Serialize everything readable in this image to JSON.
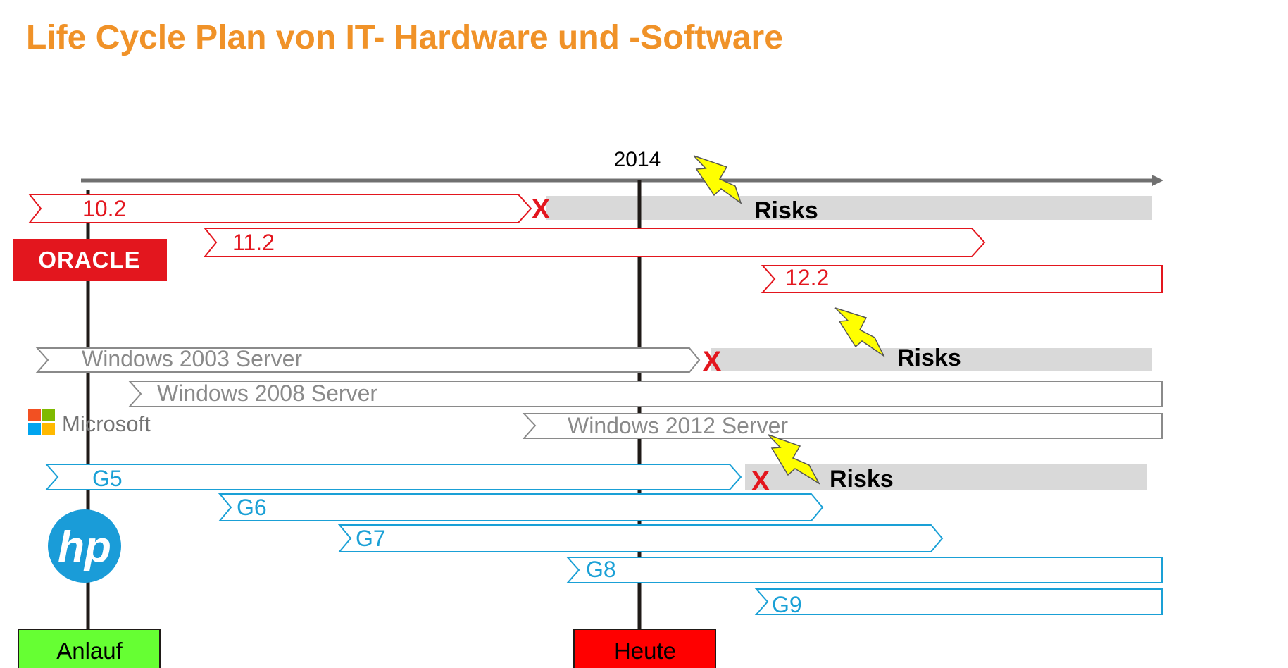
{
  "title": "Life Cycle Plan von IT- Hardware und -Software",
  "year_label": "2014",
  "colors": {
    "title": "#f09228",
    "oracle": "#e3161e",
    "microsoft": "#8a8a8a",
    "hp": "#1aa0d6",
    "risk_band": "#d9d9d9",
    "anlauf": "#66ff33",
    "heute": "#ff0000"
  },
  "oracle": {
    "logo_text": "ORACLE",
    "versions": [
      "10.2",
      "11.2",
      "12.2"
    ]
  },
  "microsoft": {
    "logo_text": "Microsoft",
    "versions": [
      "Windows 2003 Server",
      "Windows 2008 Server",
      "Windows 2012 Server"
    ]
  },
  "hp": {
    "logo_text": "hp",
    "versions": [
      "G5",
      "G6",
      "G7",
      "G8",
      "G9"
    ]
  },
  "risks": [
    "Risks",
    "Risks",
    "Risks"
  ],
  "end_mark": "X",
  "markers": {
    "start": "Anlauf",
    "today": "Heute"
  }
}
